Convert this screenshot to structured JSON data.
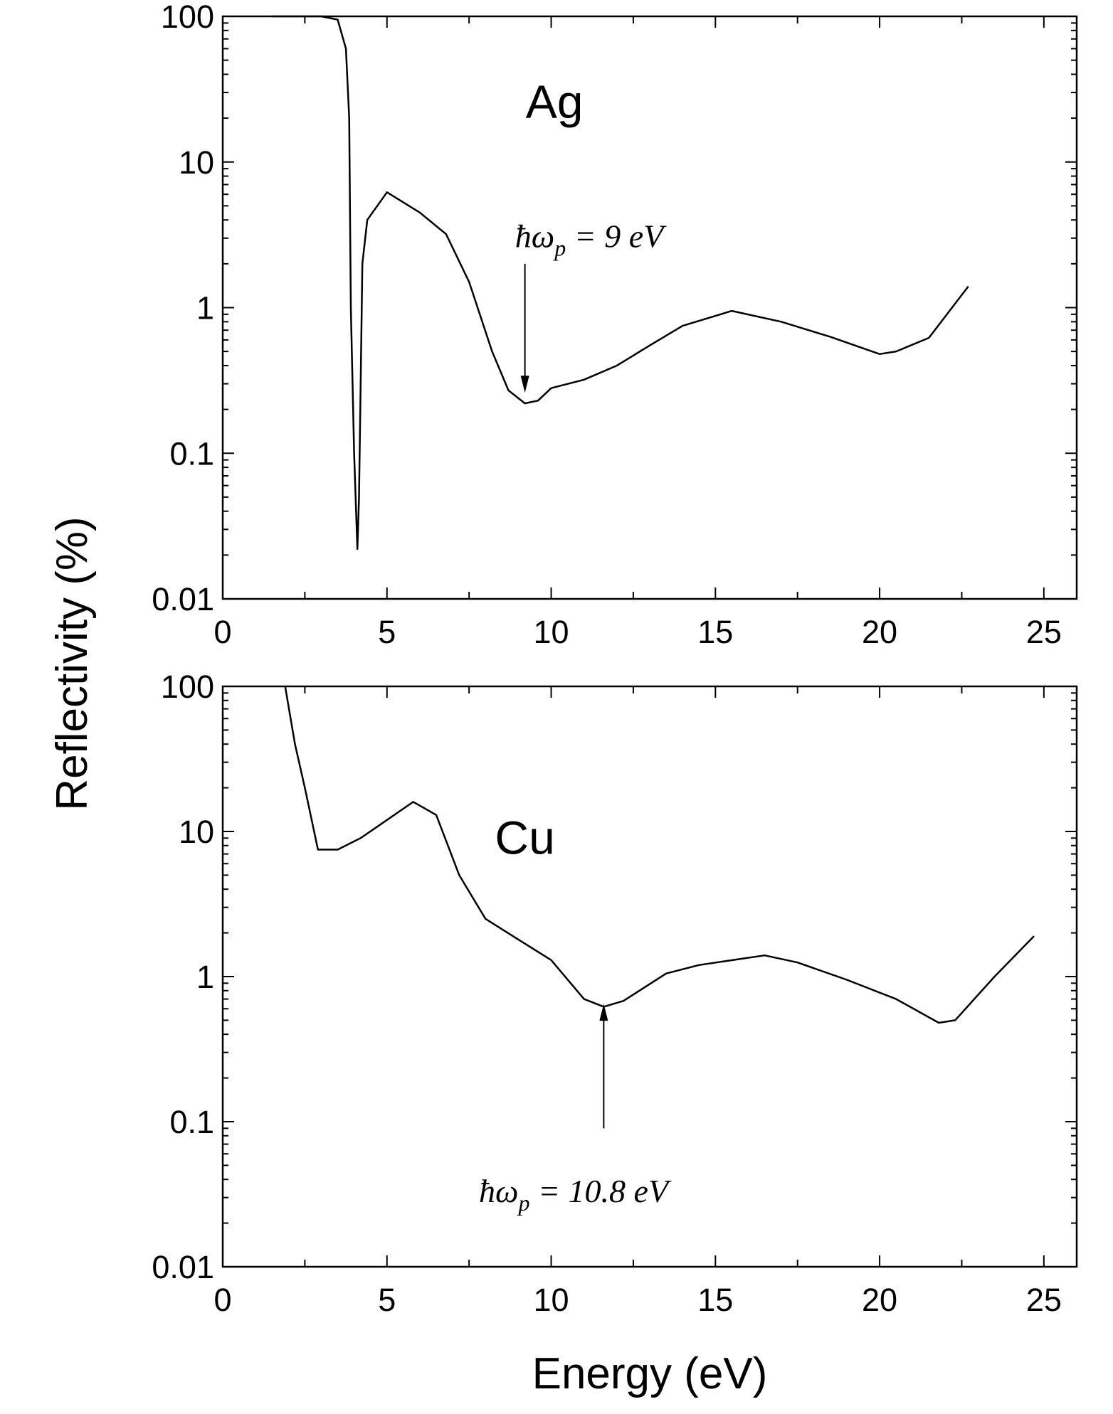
{
  "chart_data": [
    {
      "type": "line",
      "panel_label": "Ag",
      "xlabel": "Energy (eV)",
      "ylabel": "Reflectivity (%)",
      "xlim": [
        0,
        26
      ],
      "ylim": [
        0.01,
        100
      ],
      "yscale": "log",
      "xticks": [
        "0",
        "5",
        "10",
        "15",
        "20",
        "25"
      ],
      "yticks": [
        "0.01",
        "0.1",
        "1",
        "10",
        "100"
      ],
      "annotation": {
        "prefix": "ħω",
        "sub": "p",
        "text": " = 9 eV",
        "x": 9.2,
        "y": 0.26
      },
      "x": [
        1.5,
        3,
        3.5,
        3.75,
        3.85,
        3.9,
        4.0,
        4.1,
        4.15,
        4.2,
        4.25,
        4.4,
        5,
        6,
        6.8,
        7.5,
        8.2,
        8.7,
        9.2,
        9.6,
        10,
        11,
        12,
        13,
        14,
        15.5,
        17,
        18.5,
        20,
        20.5,
        21.5,
        22.7
      ],
      "y": [
        100,
        100,
        95,
        60,
        20,
        1,
        0.1,
        0.022,
        0.05,
        0.3,
        2,
        4,
        6.2,
        4.5,
        3.2,
        1.5,
        0.5,
        0.27,
        0.22,
        0.23,
        0.28,
        0.32,
        0.4,
        0.55,
        0.75,
        0.95,
        0.8,
        0.63,
        0.48,
        0.5,
        0.62,
        1.4
      ]
    },
    {
      "type": "line",
      "panel_label": "Cu",
      "xlabel": "Energy (eV)",
      "ylabel": "Reflectivity (%)",
      "xlim": [
        0,
        26
      ],
      "ylim": [
        0.01,
        100
      ],
      "yscale": "log",
      "xticks": [
        "0",
        "5",
        "10",
        "15",
        "20",
        "25"
      ],
      "yticks": [
        "0.01",
        "0.1",
        "1",
        "10",
        "100"
      ],
      "annotation": {
        "prefix": "ħω",
        "sub": "p",
        "text": " = 10.8 eV",
        "x": 11.6,
        "y": 0.65
      },
      "x": [
        1.9,
        2.2,
        2.5,
        2.9,
        3.5,
        4.2,
        5,
        5.8,
        6.5,
        7.2,
        8,
        9,
        10,
        11,
        11.6,
        12.2,
        13.5,
        14.5,
        16.5,
        17.5,
        19,
        20.5,
        21.8,
        22.3,
        23.5,
        24.7
      ],
      "y": [
        100,
        40,
        20,
        7.5,
        7.5,
        9,
        12,
        16,
        13,
        5,
        2.5,
        1.8,
        1.3,
        0.7,
        0.62,
        0.68,
        1.05,
        1.2,
        1.4,
        1.25,
        0.95,
        0.7,
        0.48,
        0.5,
        1.0,
        1.9
      ]
    }
  ]
}
